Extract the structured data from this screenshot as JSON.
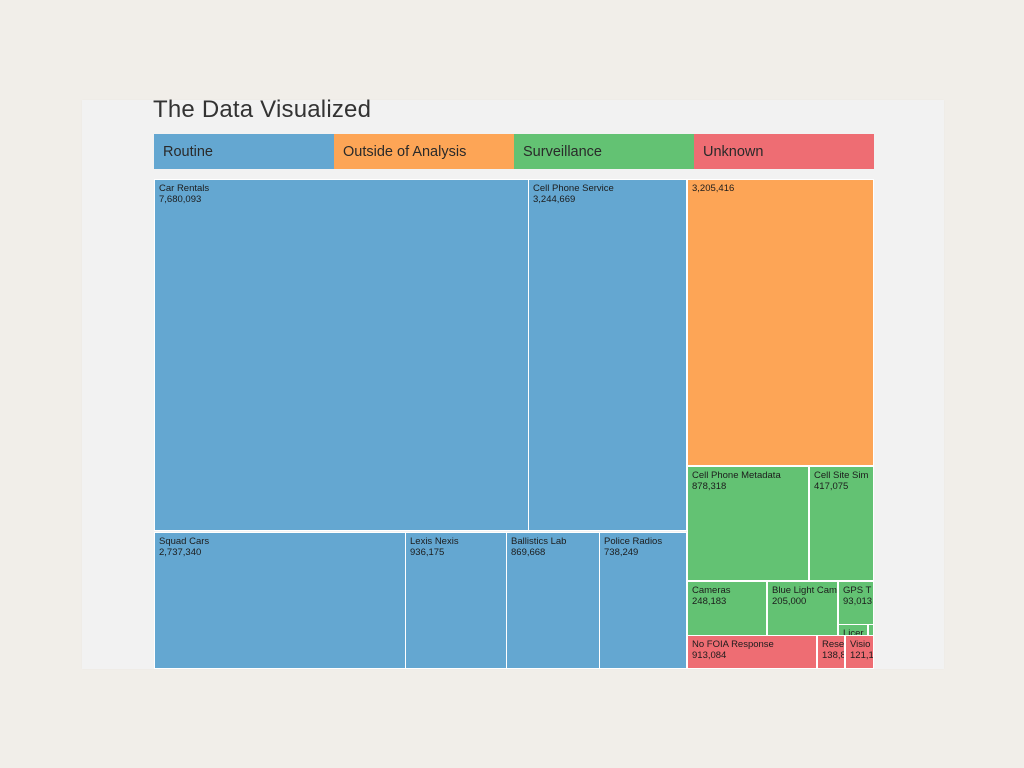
{
  "chart_data": {
    "type": "treemap",
    "title": "The Data Visualized",
    "legend": [
      {
        "name": "Routine",
        "color": "#64a7d1"
      },
      {
        "name": "Outside of Analysis",
        "color": "#fda556"
      },
      {
        "name": "Surveillance",
        "color": "#63c273"
      },
      {
        "name": "Unknown",
        "color": "#ee6d73"
      }
    ],
    "items": [
      {
        "category": "Routine",
        "label": "Car Rentals",
        "value": "7,680,093"
      },
      {
        "category": "Routine",
        "label": "Cell Phone Service",
        "value": "3,244,669"
      },
      {
        "category": "Routine",
        "label": "Squad Cars",
        "value": "2,737,340"
      },
      {
        "category": "Routine",
        "label": "Lexis Nexis",
        "value": "936,175"
      },
      {
        "category": "Routine",
        "label": "Ballistics Lab",
        "value": "869,668"
      },
      {
        "category": "Routine",
        "label": "Police Radios",
        "value": "738,249"
      },
      {
        "category": "Outside of Analysis",
        "label": "",
        "value": "3,205,416"
      },
      {
        "category": "Surveillance",
        "label": "Cell Phone Metadata",
        "value": "878,318"
      },
      {
        "category": "Surveillance",
        "label": "Cell Site Sim",
        "value": "417,075"
      },
      {
        "category": "Surveillance",
        "label": "Cameras",
        "value": "248,183"
      },
      {
        "category": "Surveillance",
        "label": "Blue Light Cam",
        "value": "205,000"
      },
      {
        "category": "Surveillance",
        "label": "GPS T",
        "value": "93,013"
      },
      {
        "category": "Surveillance",
        "label": "Licer",
        "value": ""
      },
      {
        "category": "Surveillance",
        "label": "",
        "value": ""
      },
      {
        "category": "Unknown",
        "label": "No FOIA Response",
        "value": "913,084"
      },
      {
        "category": "Unknown",
        "label": "Rese",
        "value": "138,8"
      },
      {
        "category": "Unknown",
        "label": "Visio",
        "value": "121,1"
      }
    ]
  }
}
